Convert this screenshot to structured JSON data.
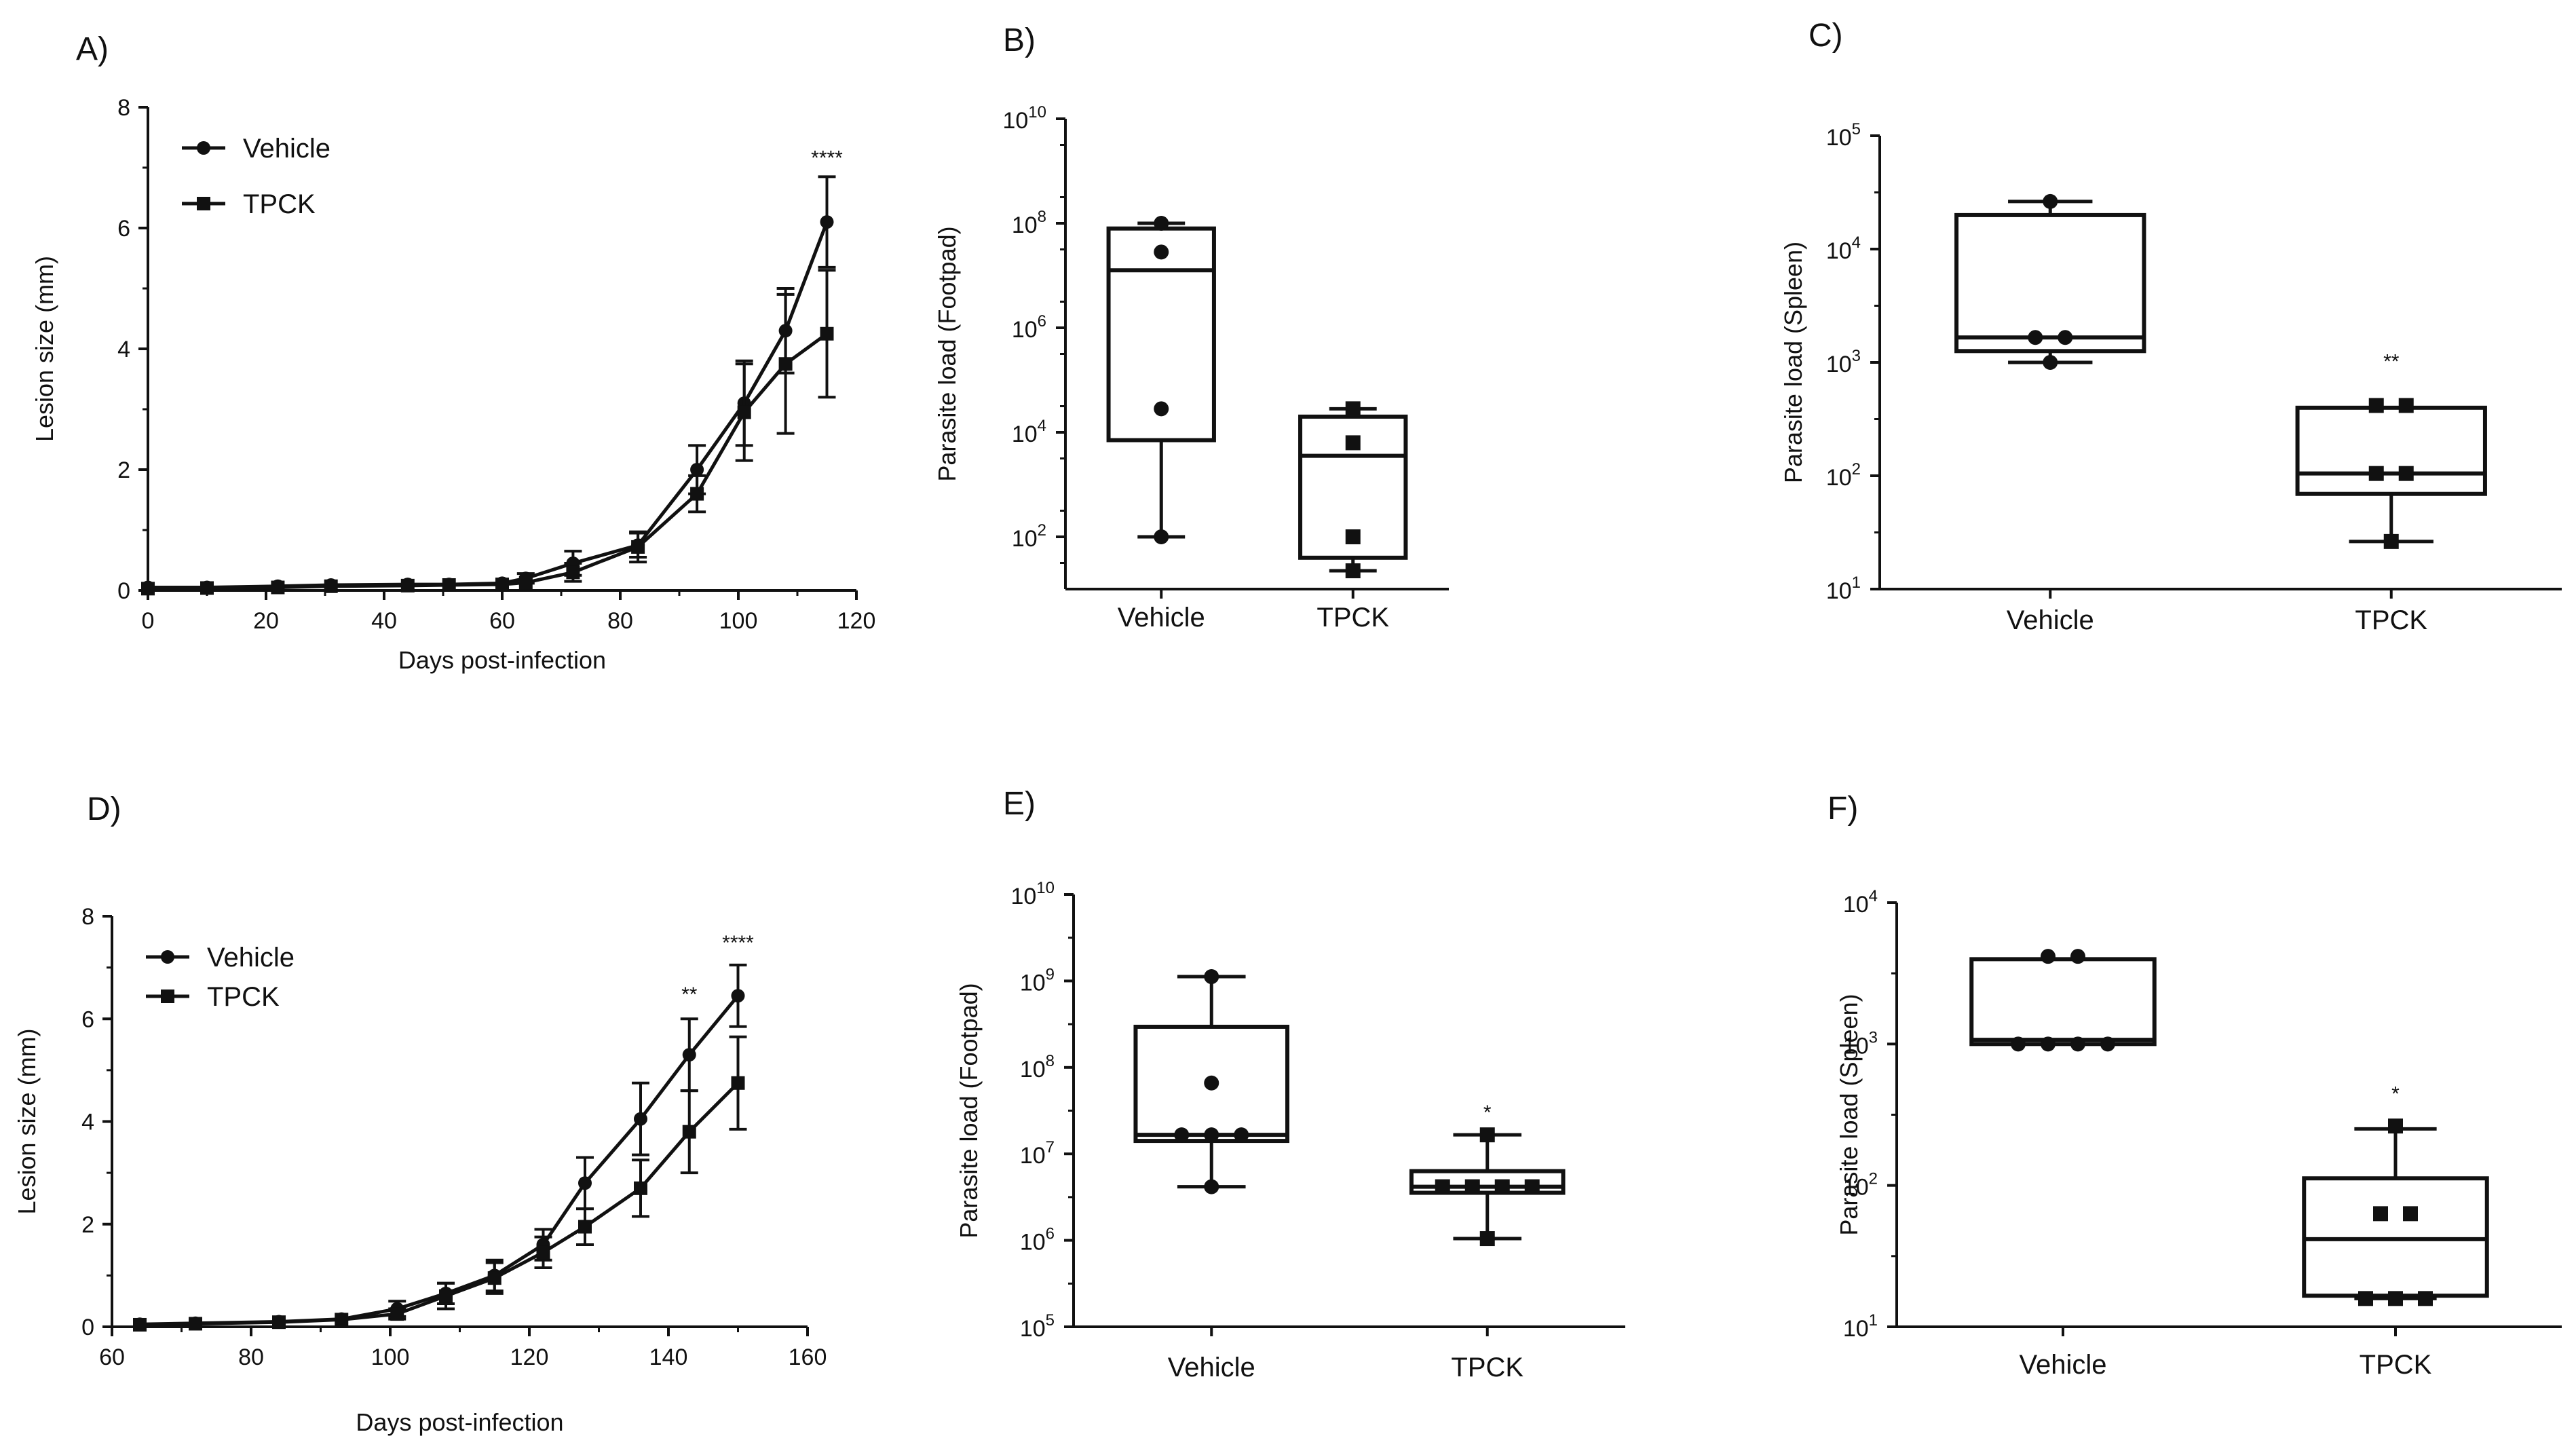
{
  "figure": {
    "colors": {
      "ink": "#111111",
      "background": "#ffffff"
    }
  },
  "chart_data": [
    {
      "id": "A",
      "type": "line",
      "panel_label": "A)",
      "xlabel": "Days post-infection",
      "ylabel": "Lesion size (mm)",
      "xlim": [
        0,
        120
      ],
      "ylim": [
        0,
        8
      ],
      "xticks": [
        "0",
        "20",
        "40",
        "60",
        "80",
        "100",
        "120"
      ],
      "yticks": [
        "0",
        "2",
        "4",
        "6",
        "8"
      ],
      "legend": {
        "placement": "top-left"
      },
      "series": [
        {
          "name": "Vehicle",
          "marker": "circle",
          "x": [
            0,
            10,
            22,
            31,
            44,
            51,
            60,
            64,
            72,
            83,
            93,
            101,
            108,
            115
          ],
          "y": [
            0.05,
            0.05,
            0.07,
            0.09,
            0.1,
            0.1,
            0.12,
            0.2,
            0.45,
            0.75,
            2.0,
            3.1,
            4.3,
            6.1
          ],
          "err": [
            0.02,
            0.02,
            0.03,
            0.03,
            0.04,
            0.04,
            0.05,
            0.08,
            0.2,
            0.2,
            0.4,
            0.7,
            0.7,
            0.75
          ]
        },
        {
          "name": "TPCK",
          "marker": "square",
          "x": [
            0,
            10,
            22,
            31,
            44,
            51,
            60,
            64,
            72,
            83,
            93,
            101,
            108,
            115
          ],
          "y": [
            0.03,
            0.04,
            0.05,
            0.07,
            0.08,
            0.09,
            0.1,
            0.13,
            0.3,
            0.72,
            1.6,
            2.95,
            3.75,
            4.25
          ],
          "err": [
            0.02,
            0.02,
            0.03,
            0.03,
            0.03,
            0.04,
            0.04,
            0.06,
            0.15,
            0.25,
            0.3,
            0.8,
            1.15,
            1.05
          ]
        }
      ],
      "annotations": [
        {
          "text": "****",
          "x": 115,
          "y": 7.05
        }
      ]
    },
    {
      "id": "B",
      "type": "box",
      "panel_label": "B)",
      "ylabel": "Parasite load (Footpad)",
      "yscale": "log",
      "ylim_exp": [
        1,
        10
      ],
      "ytick_exps": [
        2,
        4,
        6,
        8,
        10
      ],
      "ytick_labels": [
        "10",
        "10",
        "10",
        "10",
        "10"
      ],
      "ytick_sups": [
        "2",
        "4",
        "6",
        "8",
        "10"
      ],
      "categories": [
        "Vehicle",
        "TPCK"
      ],
      "boxes": [
        {
          "name": "Vehicle",
          "min": 2.0,
          "q1": 3.85,
          "median": 7.1,
          "q3": 7.9,
          "max": 8.0,
          "points": [
            8.0,
            7.45,
            4.45,
            2.0
          ],
          "marker": "circle"
        },
        {
          "name": "TPCK",
          "min": 1.35,
          "q1": 1.6,
          "median": 3.55,
          "q3": 4.3,
          "max": 4.45,
          "points": [
            4.45,
            3.8,
            2.0,
            1.35
          ],
          "marker": "square"
        }
      ],
      "annotations": []
    },
    {
      "id": "C",
      "type": "box",
      "panel_label": "C)",
      "ylabel": "Parasite load (Spleen)",
      "yscale": "log",
      "ylim_exp": [
        1,
        5
      ],
      "ytick_exps": [
        1,
        2,
        3,
        4,
        5
      ],
      "ytick_labels": [
        "10",
        "10",
        "10",
        "10",
        "10"
      ],
      "ytick_sups": [
        "1",
        "2",
        "3",
        "4",
        "5"
      ],
      "categories": [
        "Vehicle",
        "TPCK"
      ],
      "boxes": [
        {
          "name": "Vehicle",
          "min": 3.0,
          "q1": 3.1,
          "median": 3.22,
          "q3": 4.3,
          "max": 4.42,
          "points": [
            4.42,
            3.22,
            3.22,
            3.0
          ],
          "marker": "circle"
        },
        {
          "name": "TPCK",
          "min": 1.42,
          "q1": 1.84,
          "median": 2.02,
          "q3": 2.6,
          "max": 2.6,
          "points": [
            2.62,
            2.62,
            2.02,
            2.02,
            1.42
          ],
          "marker": "square"
        }
      ],
      "annotations": [
        {
          "text": "**",
          "category": "TPCK",
          "y_exp": 2.95
        }
      ]
    },
    {
      "id": "D",
      "type": "line",
      "panel_label": "D)",
      "xlabel": "Days post-infection",
      "ylabel": "Lesion size (mm)",
      "xlim": [
        60,
        160
      ],
      "ylim": [
        0,
        8
      ],
      "xticks": [
        "60",
        "80",
        "100",
        "120",
        "140",
        "160"
      ],
      "yticks": [
        "0",
        "2",
        "4",
        "6",
        "8"
      ],
      "legend": {
        "placement": "top-left"
      },
      "series": [
        {
          "name": "Vehicle",
          "marker": "circle",
          "x": [
            64,
            72,
            84,
            93,
            101,
            108,
            115,
            122,
            128,
            136,
            143,
            150
          ],
          "y": [
            0.05,
            0.07,
            0.1,
            0.15,
            0.35,
            0.65,
            1.0,
            1.6,
            2.8,
            4.05,
            5.3,
            6.45
          ],
          "err": [
            0.02,
            0.03,
            0.04,
            0.05,
            0.15,
            0.2,
            0.3,
            0.3,
            0.5,
            0.7,
            0.7,
            0.6
          ]
        },
        {
          "name": "TPCK",
          "marker": "square",
          "x": [
            64,
            72,
            84,
            93,
            101,
            108,
            115,
            122,
            128,
            136,
            143,
            150
          ],
          "y": [
            0.04,
            0.06,
            0.09,
            0.14,
            0.25,
            0.6,
            0.95,
            1.45,
            1.95,
            2.7,
            3.8,
            4.75
          ],
          "err": [
            0.02,
            0.03,
            0.04,
            0.05,
            0.1,
            0.25,
            0.3,
            0.3,
            0.35,
            0.55,
            0.8,
            0.9
          ]
        }
      ],
      "annotations": [
        {
          "text": "**",
          "x": 143,
          "y": 6.35
        },
        {
          "text": "****",
          "x": 150,
          "y": 7.35
        }
      ]
    },
    {
      "id": "E",
      "type": "box",
      "panel_label": "E)",
      "ylabel": "Parasite load (Footpad)",
      "yscale": "log",
      "ylim_exp": [
        5,
        10
      ],
      "ytick_exps": [
        5,
        6,
        7,
        8,
        9,
        10
      ],
      "ytick_labels": [
        "10",
        "10",
        "10",
        "10",
        "10",
        "10"
      ],
      "ytick_sups": [
        "5",
        "6",
        "7",
        "8",
        "9",
        "10"
      ],
      "categories": [
        "Vehicle",
        "TPCK"
      ],
      "boxes": [
        {
          "name": "Vehicle",
          "min": 6.62,
          "q1": 7.15,
          "median": 7.22,
          "q3": 8.47,
          "max": 9.05,
          "points": [
            9.05,
            7.82,
            7.22,
            7.22,
            7.22,
            6.62
          ],
          "marker": "circle"
        },
        {
          "name": "TPCK",
          "min": 6.02,
          "q1": 6.55,
          "median": 6.62,
          "q3": 6.8,
          "max": 7.22,
          "points": [
            7.22,
            6.62,
            6.62,
            6.62,
            6.62,
            6.02
          ],
          "marker": "square"
        }
      ],
      "annotations": [
        {
          "text": "*",
          "category": "TPCK",
          "y_exp": 7.4
        }
      ]
    },
    {
      "id": "F",
      "type": "box",
      "panel_label": "F)",
      "ylabel": "Parasite load (Spleen)",
      "yscale": "log",
      "ylim_exp": [
        1,
        4
      ],
      "ytick_exps": [
        1,
        2,
        3,
        4
      ],
      "ytick_labels": [
        "10",
        "10",
        "10",
        "10"
      ],
      "ytick_sups": [
        "1",
        "2",
        "3",
        "4"
      ],
      "categories": [
        "Vehicle",
        "TPCK"
      ],
      "boxes": [
        {
          "name": "Vehicle",
          "min": 3.0,
          "q1": 3.0,
          "median": 3.03,
          "q3": 3.6,
          "max": 3.6,
          "points": [
            3.62,
            3.62,
            3.0,
            3.0,
            3.0,
            3.0
          ],
          "marker": "circle"
        },
        {
          "name": "TPCK",
          "min": 1.2,
          "q1": 1.22,
          "median": 1.62,
          "q3": 2.05,
          "max": 2.4,
          "points": [
            2.42,
            1.8,
            1.8,
            1.2,
            1.2,
            1.2
          ],
          "marker": "square"
        }
      ],
      "annotations": [
        {
          "text": "*",
          "category": "TPCK",
          "y_exp": 2.6
        }
      ]
    }
  ]
}
